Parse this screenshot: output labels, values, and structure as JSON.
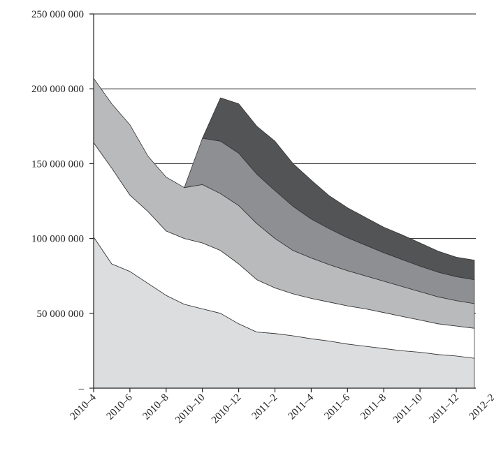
{
  "chart_data": {
    "type": "area",
    "stacked": true,
    "title": "",
    "xlabel": "",
    "ylabel": "",
    "x": [
      "2010–4",
      "2010–5",
      "2010–6",
      "2010–7",
      "2010–8",
      "2010–9",
      "2010–10",
      "2010–11",
      "2010–12",
      "2011–1",
      "2011–2",
      "2011–3",
      "2011–4",
      "2011–5",
      "2011–6",
      "2011–7",
      "2011–8",
      "2011–9",
      "2011–10",
      "2011–11",
      "2011–12",
      "2012–1"
    ],
    "x_tick_labels": [
      "2010–4",
      "2010–6",
      "2010–8",
      "2010–10",
      "2010–12",
      "2011–2",
      "2011–4",
      "2011–6",
      "2011–8",
      "2011–10",
      "2011–12",
      "2012–2"
    ],
    "y_tick_labels": [
      "–",
      "50 000 000",
      "100 000 000",
      "150 000 000",
      "200 000 000",
      "250 000 000"
    ],
    "y_ticks": [
      0,
      50000000,
      100000000,
      150000000,
      200000000,
      250000000
    ],
    "ylim": [
      0,
      250000000
    ],
    "grid": "horizontal",
    "series": [
      {
        "color": "#dcdddf",
        "values": [
          101000000,
          83000000,
          78000000,
          70000000,
          62000000,
          56000000,
          53000000,
          50000000,
          43000000,
          37500000,
          36500000,
          35000000,
          33000000,
          31500000,
          29500000,
          28000000,
          26500000,
          25000000,
          24000000,
          22500000,
          21500000,
          20000000
        ]
      },
      {
        "color": "#ffffff",
        "values": [
          63000000,
          64000000,
          51000000,
          48000000,
          43000000,
          44000000,
          44000000,
          42000000,
          40000000,
          35000000,
          30500000,
          28000000,
          27000000,
          26000000,
          25500000,
          25000000,
          24000000,
          23000000,
          21500000,
          20500000,
          20000000,
          20000000
        ]
      },
      {
        "color": "#b9babc",
        "values": [
          43000000,
          43000000,
          47000000,
          37000000,
          36000000,
          34000000,
          39000000,
          38000000,
          39000000,
          37500000,
          33000000,
          29000000,
          27000000,
          25000000,
          23500000,
          22000000,
          21000000,
          20000000,
          19000000,
          18000000,
          17000000,
          16500000
        ]
      },
      {
        "color": "#8e8f92",
        "values": [
          0,
          0,
          0,
          0,
          0,
          0,
          31000000,
          35000000,
          35000000,
          33000000,
          32000000,
          29500000,
          26000000,
          24000000,
          22000000,
          20500000,
          19000000,
          18000000,
          17000000,
          16500000,
          16000000,
          16000000
        ]
      },
      {
        "color": "#535456",
        "values": [
          0,
          0,
          0,
          0,
          0,
          0,
          0,
          29000000,
          33000000,
          32000000,
          33000000,
          28500000,
          26000000,
          22000000,
          20000000,
          18500000,
          17000000,
          16500000,
          15500000,
          14000000,
          13000000,
          13000000
        ]
      }
    ]
  }
}
